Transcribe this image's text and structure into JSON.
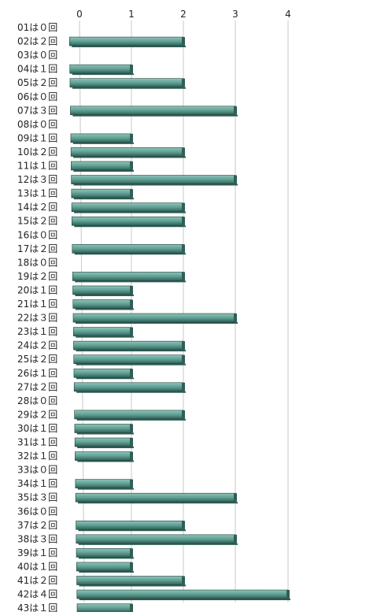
{
  "chart_data": {
    "type": "bar",
    "orientation": "horizontal",
    "title": "",
    "xlabel": "",
    "ylabel": "",
    "xlim": [
      0,
      4
    ],
    "x_ticks": [
      "0",
      "1",
      "2",
      "3",
      "4"
    ],
    "grid": true,
    "legend": "none",
    "colors": {
      "bar_face": "#5f9f93",
      "bar_top": "#8fc4b8",
      "bar_side": "#2f5f56",
      "bar_edge": "#1f3f39",
      "gridline": "#c8c8c8",
      "text": "#222222"
    },
    "categories": [
      "01は０回",
      "02は２回",
      "03は０回",
      "04は１回",
      "05は２回",
      "06は０回",
      "07は３回",
      "08は０回",
      "09は１回",
      "10は２回",
      "11は１回",
      "12は３回",
      "13は１回",
      "14は２回",
      "15は２回",
      "16は０回",
      "17は２回",
      "18は０回",
      "19は２回",
      "20は１回",
      "21は１回",
      "22は３回",
      "23は１回",
      "24は２回",
      "25は２回",
      "26は１回",
      "27は２回",
      "28は０回",
      "29は２回",
      "30は１回",
      "31は１回",
      "32は１回",
      "33は０回",
      "34は１回",
      "35は３回",
      "36は０回",
      "37は２回",
      "38は３回",
      "39は１回",
      "40は１回",
      "41は２回",
      "42は４回",
      "43は１回"
    ],
    "values": [
      0,
      2,
      0,
      1,
      2,
      0,
      3,
      0,
      1,
      2,
      1,
      3,
      1,
      2,
      2,
      0,
      2,
      0,
      2,
      1,
      1,
      3,
      1,
      2,
      2,
      1,
      2,
      0,
      2,
      1,
      1,
      1,
      0,
      1,
      3,
      0,
      2,
      3,
      1,
      1,
      2,
      4,
      1
    ]
  }
}
